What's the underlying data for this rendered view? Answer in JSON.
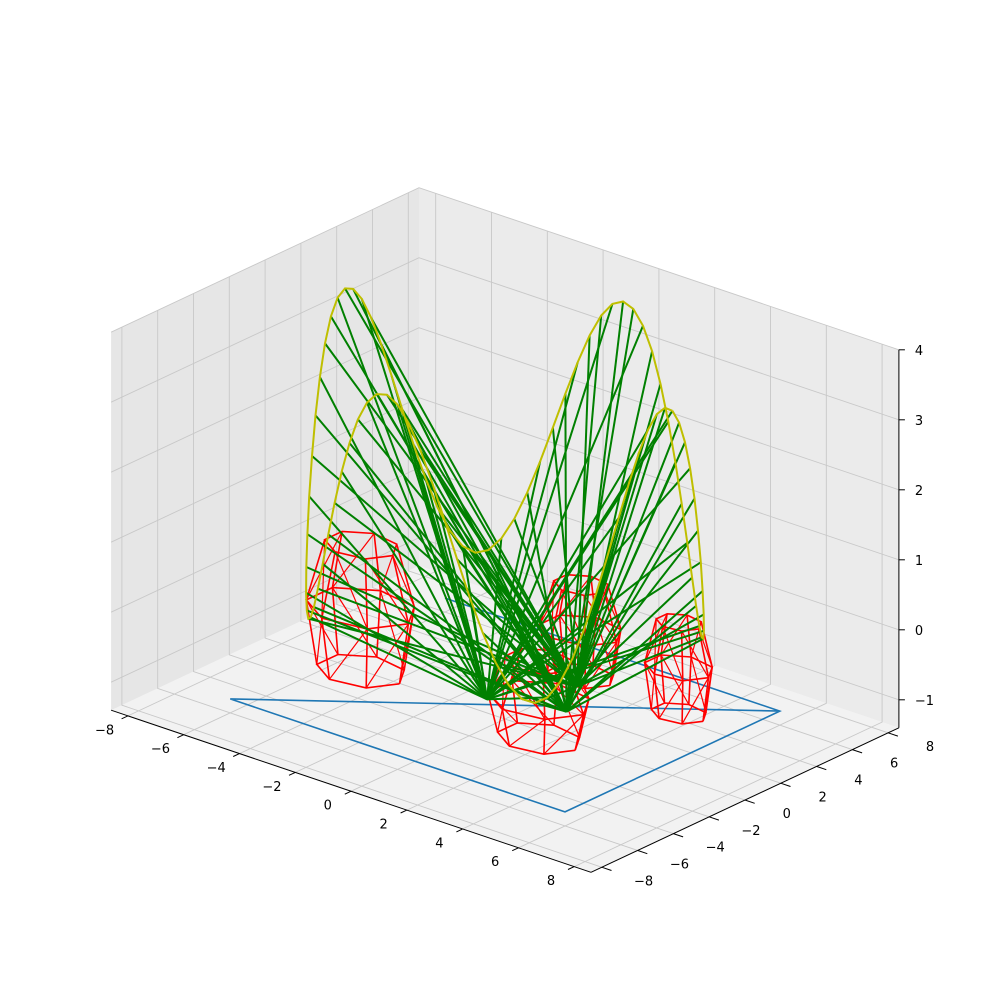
{
  "chart_data": {
    "type": "3d-line",
    "title": "",
    "xlabel": "",
    "ylabel": "",
    "zlabel": "",
    "grid": true,
    "xlim": [
      -8.6,
      8.6
    ],
    "ylim": [
      -8.6,
      8.6
    ],
    "zlim": [
      -1.4,
      4.0
    ],
    "x_ticks": [
      "−8",
      "−6",
      "−4",
      "−2",
      "0",
      "2",
      "4",
      "6",
      "8"
    ],
    "y_ticks": [
      "−8",
      "−6",
      "−4",
      "−2",
      "0",
      "2",
      "4",
      "6",
      "8"
    ],
    "z_ticks": [
      "−1",
      "0",
      "1",
      "2",
      "3",
      "4"
    ],
    "x_tick_values": [
      -8,
      -6,
      -4,
      -2,
      0,
      2,
      4,
      6,
      8
    ],
    "y_tick_values": [
      -8,
      -6,
      -4,
      -2,
      0,
      2,
      4,
      6,
      8
    ],
    "z_tick_values": [
      -1,
      0,
      1,
      2,
      3,
      4
    ],
    "colors": {
      "rim_curve": "#bfbf00",
      "spokes": "#008000",
      "wireframe": "#ff0000",
      "base_outline": "#1f77b4",
      "pane": "#f2f2f2",
      "grid": "#c8c8c8"
    },
    "rim_curve": {
      "description_free_params": true,
      "radius": 6.0,
      "z_center": 1.9,
      "z_amplitude": 2.0,
      "lobes": 4,
      "points": 96
    },
    "spoke_hubs": [
      {
        "x": 0.0,
        "y": -1.0,
        "z": -1.0
      },
      {
        "x": 2.2,
        "y": 0.0,
        "z": -1.0
      },
      {
        "x": 1.3,
        "y": 2.0,
        "z": -1.0
      }
    ],
    "spoke_count": 96,
    "base_outline": [
      {
        "x": -6.0,
        "y": -6.0,
        "z": -1.2
      },
      {
        "x": 6.0,
        "y": -6.0,
        "z": -1.2
      },
      {
        "x": 6.0,
        "y": 6.0,
        "z": -1.2
      },
      {
        "x": -6.0,
        "y": 6.0,
        "z": -1.2
      },
      {
        "x": 6.0,
        "y": 6.0,
        "z": -1.2
      },
      {
        "x": -6.0,
        "y": -6.0,
        "z": -1.2
      }
    ],
    "wireframes": [
      {
        "cx": -4.5,
        "cy": -1.0,
        "r": 1.6,
        "z0": -1.2,
        "z1": 0.6
      },
      {
        "cx": 2.2,
        "cy": -1.5,
        "r": 1.5,
        "z0": -1.2,
        "z1": -0.1
      },
      {
        "cx": 4.0,
        "cy": 3.5,
        "r": 1.0,
        "z0": -1.2,
        "z1": 0.1
      },
      {
        "cx": 0.3,
        "cy": 3.8,
        "r": 1.2,
        "z0": -1.2,
        "z1": 0.1
      }
    ]
  }
}
